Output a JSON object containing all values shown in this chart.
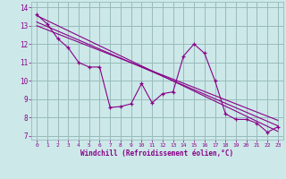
{
  "xlabel": "Windchill (Refroidissement éolien,°C)",
  "background_color": "#cce8e8",
  "line_color": "#880088",
  "grid_color": "#99bbbb",
  "xlim": [
    -0.5,
    23.5
  ],
  "ylim": [
    6.8,
    14.3
  ],
  "xticks": [
    0,
    1,
    2,
    3,
    4,
    5,
    6,
    7,
    8,
    9,
    10,
    11,
    12,
    13,
    14,
    15,
    16,
    17,
    18,
    19,
    20,
    21,
    22,
    23
  ],
  "yticks": [
    7,
    8,
    9,
    10,
    11,
    12,
    13,
    14
  ],
  "main_series_x": [
    0,
    1,
    2,
    3,
    4,
    5,
    6,
    7,
    8,
    9,
    10,
    11,
    12,
    13,
    14,
    15,
    16,
    17,
    18,
    19,
    20,
    21,
    22,
    23
  ],
  "main_series_y": [
    13.6,
    13.1,
    12.3,
    11.8,
    11.0,
    10.75,
    10.75,
    8.55,
    8.6,
    8.75,
    9.85,
    8.8,
    9.3,
    9.4,
    11.35,
    12.0,
    11.5,
    10.0,
    8.2,
    7.9,
    7.9,
    7.7,
    7.2,
    7.5
  ],
  "reg_line1_x": [
    0,
    23
  ],
  "reg_line1_y": [
    13.55,
    7.25
  ],
  "reg_line2_x": [
    0,
    23
  ],
  "reg_line2_y": [
    13.2,
    7.55
  ],
  "reg_line3_x": [
    0,
    23
  ],
  "reg_line3_y": [
    13.0,
    7.85
  ]
}
